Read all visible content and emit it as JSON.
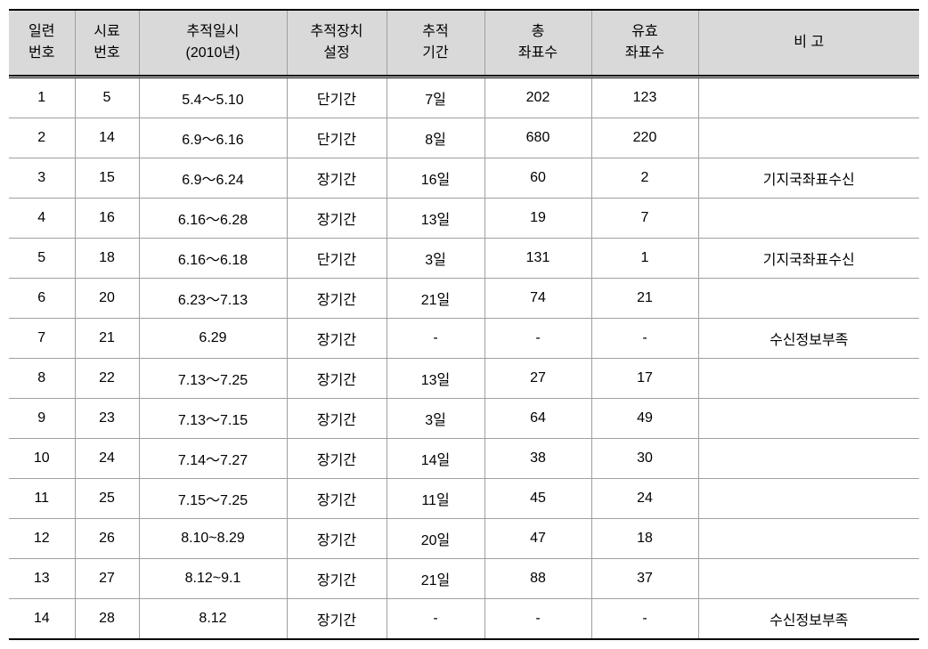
{
  "table": {
    "columns": [
      {
        "line1": "일련",
        "line2": "번호"
      },
      {
        "line1": "시료",
        "line2": "번호"
      },
      {
        "line1": "추적일시",
        "line2": "(2010년)"
      },
      {
        "line1": "추적장치",
        "line2": "설정"
      },
      {
        "line1": "추적",
        "line2": "기간"
      },
      {
        "line1": "총",
        "line2": "좌표수"
      },
      {
        "line1": "유효",
        "line2": "좌표수"
      },
      {
        "line1": "비 고",
        "line2": ""
      }
    ],
    "rows": [
      {
        "seq": "1",
        "sample": "5",
        "datetime": "5.4～5.10",
        "device": "단기간",
        "period": "7일",
        "total": "202",
        "valid": "123",
        "remark": ""
      },
      {
        "seq": "2",
        "sample": "14",
        "datetime": "6.9～6.16",
        "device": "단기간",
        "period": "8일",
        "total": "680",
        "valid": "220",
        "remark": ""
      },
      {
        "seq": "3",
        "sample": "15",
        "datetime": "6.9～6.24",
        "device": "장기간",
        "period": "16일",
        "total": "60",
        "valid": "2",
        "remark": "기지국좌표수신"
      },
      {
        "seq": "4",
        "sample": "16",
        "datetime": "6.16～6.28",
        "device": "장기간",
        "period": "13일",
        "total": "19",
        "valid": "7",
        "remark": ""
      },
      {
        "seq": "5",
        "sample": "18",
        "datetime": "6.16～6.18",
        "device": "단기간",
        "period": "3일",
        "total": "131",
        "valid": "1",
        "remark": "기지국좌표수신"
      },
      {
        "seq": "6",
        "sample": "20",
        "datetime": "6.23～7.13",
        "device": "장기간",
        "period": "21일",
        "total": "74",
        "valid": "21",
        "remark": ""
      },
      {
        "seq": "7",
        "sample": "21",
        "datetime": "6.29",
        "device": "장기간",
        "period": "-",
        "total": "-",
        "valid": "-",
        "remark": "수신정보부족"
      },
      {
        "seq": "8",
        "sample": "22",
        "datetime": "7.13～7.25",
        "device": "장기간",
        "period": "13일",
        "total": "27",
        "valid": "17",
        "remark": ""
      },
      {
        "seq": "9",
        "sample": "23",
        "datetime": "7.13～7.15",
        "device": "장기간",
        "period": "3일",
        "total": "64",
        "valid": "49",
        "remark": ""
      },
      {
        "seq": "10",
        "sample": "24",
        "datetime": "7.14～7.27",
        "device": "장기간",
        "period": "14일",
        "total": "38",
        "valid": "30",
        "remark": ""
      },
      {
        "seq": "11",
        "sample": "25",
        "datetime": "7.15～7.25",
        "device": "장기간",
        "period": "11일",
        "total": "45",
        "valid": "24",
        "remark": ""
      },
      {
        "seq": "12",
        "sample": "26",
        "datetime": "8.10~8.29",
        "device": "장기간",
        "period": "20일",
        "total": "47",
        "valid": "18",
        "remark": ""
      },
      {
        "seq": "13",
        "sample": "27",
        "datetime": "8.12~9.1",
        "device": "장기간",
        "period": "21일",
        "total": "88",
        "valid": "37",
        "remark": ""
      },
      {
        "seq": "14",
        "sample": "28",
        "datetime": "8.12",
        "device": "장기간",
        "period": "-",
        "total": "-",
        "valid": "-",
        "remark": "수신정보부족"
      }
    ],
    "styling": {
      "header_bg": "#d9d9d9",
      "border_color": "#a0a0a0",
      "strong_border": "#000000",
      "font_size": 16,
      "cell_padding": 10
    }
  }
}
